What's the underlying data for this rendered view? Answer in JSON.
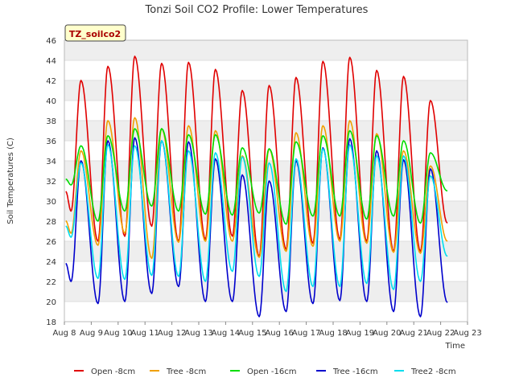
{
  "chart_data": {
    "type": "line",
    "title": "Tonzi Soil CO2 Profile: Lower Temperatures",
    "xlabel": "Time",
    "ylabel": "Soil Temperatures (C)",
    "site_label": "TZ_soilco2",
    "xlim": [
      8,
      23
    ],
    "ylim": [
      18,
      46
    ],
    "x_ticks": [
      "Aug 8",
      "Aug 9",
      "Aug 10",
      "Aug 11",
      "Aug 12",
      "Aug 13",
      "Aug 14",
      "Aug 15",
      "Aug 16",
      "Aug 17",
      "Aug 18",
      "Aug 19",
      "Aug 20",
      "Aug 21",
      "Aug 22",
      "Aug 23"
    ],
    "y_ticks": [
      18,
      20,
      22,
      24,
      26,
      28,
      30,
      32,
      34,
      36,
      38,
      40,
      42,
      44,
      46
    ],
    "grid": true,
    "legend_position": "bottom",
    "daily_extremes_note_days": [
      8,
      9,
      10,
      11,
      12,
      13,
      14,
      15,
      16,
      17,
      18,
      19,
      20,
      21,
      22
    ],
    "series": [
      {
        "name": "Open -8cm",
        "color": "#e00000",
        "min": [
          29.0,
          26.0,
          26.5,
          27.5,
          26.0,
          26.2,
          26.5,
          24.5,
          25.2,
          25.8,
          26.2,
          26.0,
          25.0,
          25.0,
          27.8
        ],
        "max": [
          42.0,
          43.4,
          44.4,
          43.7,
          43.8,
          43.1,
          41.0,
          41.5,
          42.3,
          43.9,
          44.3,
          43.0,
          42.4,
          40.0
        ]
      },
      {
        "name": "Tree -8cm",
        "color": "#f0a000",
        "min": [
          26.8,
          25.6,
          26.8,
          24.3,
          25.9,
          26.0,
          26.0,
          24.4,
          25.0,
          25.5,
          26.0,
          25.8,
          24.9,
          24.8,
          26.0
        ],
        "max": [
          35.0,
          38.0,
          38.3,
          37.2,
          37.5,
          37.0,
          34.5,
          35.2,
          36.8,
          37.5,
          38.0,
          36.7,
          35.0,
          33.5
        ]
      },
      {
        "name": "Open -16cm",
        "color": "#00dd00",
        "min": [
          31.6,
          28.0,
          29.0,
          29.5,
          29.0,
          28.7,
          28.6,
          28.8,
          27.7,
          28.5,
          28.5,
          28.2,
          28.5,
          27.8,
          31.0
        ],
        "max": [
          35.5,
          36.5,
          37.2,
          37.2,
          36.6,
          36.6,
          35.3,
          35.2,
          35.9,
          36.5,
          37.0,
          36.5,
          36.0,
          34.8
        ]
      },
      {
        "name": "Tree -16cm",
        "color": "#0000cc",
        "min": [
          22.0,
          19.8,
          20.0,
          20.8,
          21.5,
          20.0,
          20.0,
          18.5,
          19.0,
          19.8,
          20.1,
          20.0,
          19.0,
          18.5,
          19.9
        ],
        "max": [
          34.0,
          36.0,
          36.3,
          36.0,
          35.9,
          34.2,
          32.6,
          32.0,
          34.0,
          35.3,
          36.2,
          35.0,
          34.1,
          33.2
        ]
      },
      {
        "name": "Tree2 -8cm",
        "color": "#00ddee",
        "min": [
          26.4,
          22.3,
          22.2,
          22.6,
          22.5,
          22.0,
          23.0,
          22.5,
          21.0,
          21.5,
          21.5,
          21.8,
          21.2,
          22.0,
          24.5
        ],
        "max": [
          33.8,
          35.6,
          35.5,
          36.0,
          35.0,
          34.8,
          34.4,
          33.8,
          34.2,
          35.2,
          35.6,
          34.5,
          34.5,
          32.5
        ]
      }
    ]
  }
}
